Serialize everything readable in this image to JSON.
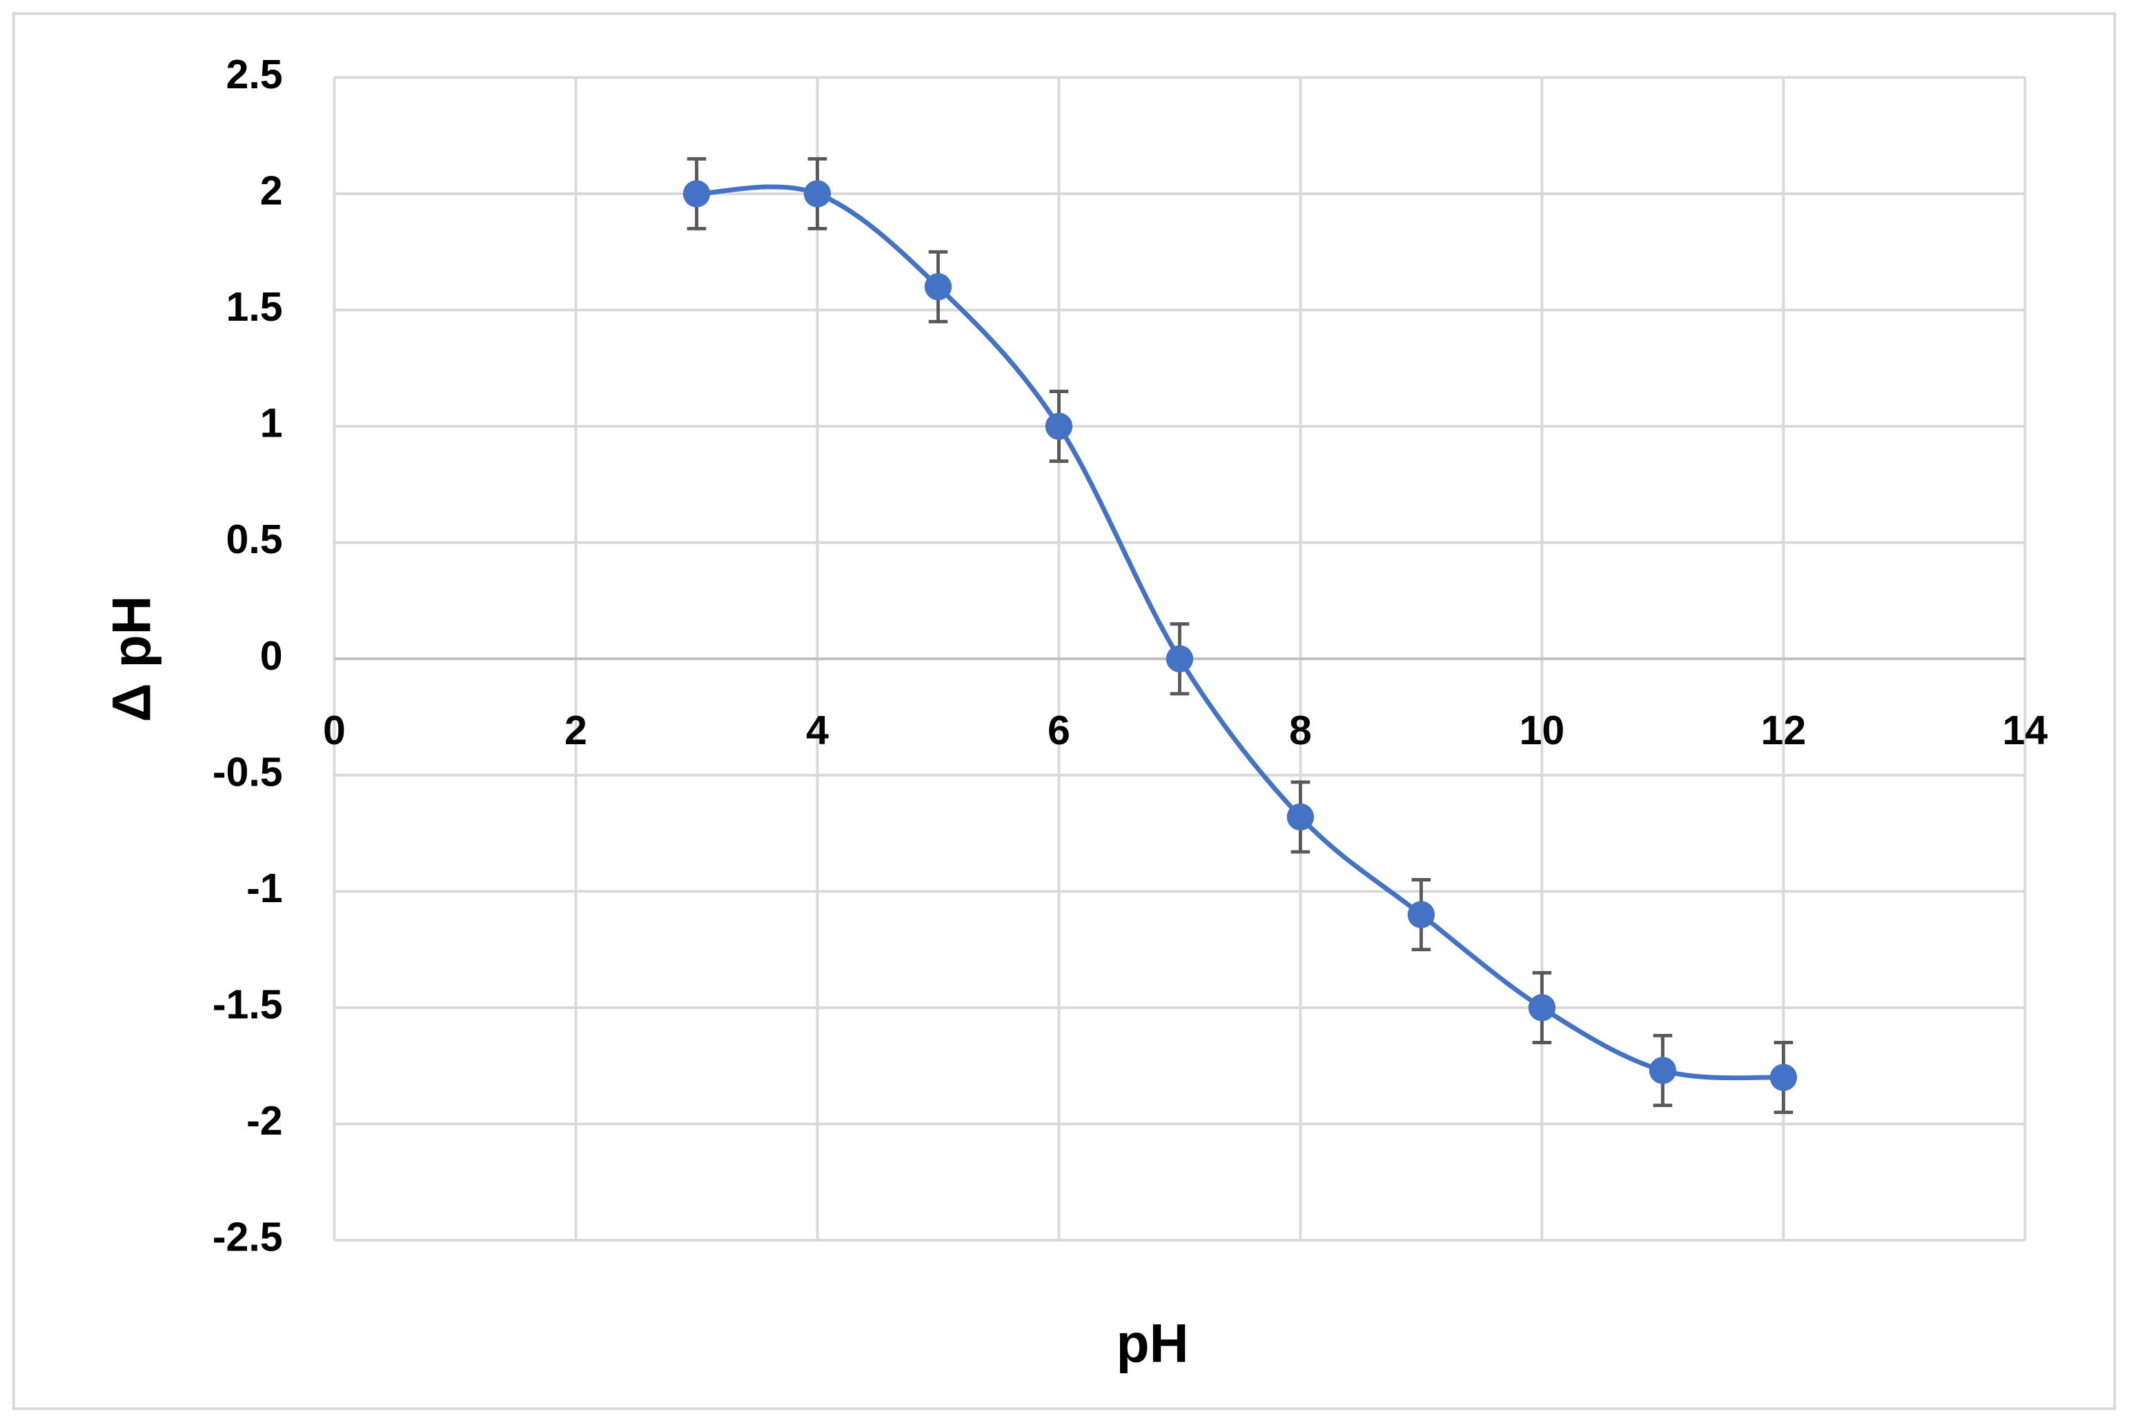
{
  "chart_data": {
    "type": "line",
    "x_label": "pH",
    "y_label": "Δ pH",
    "x": [
      3,
      4,
      5,
      6,
      7,
      8,
      9,
      10,
      11,
      12
    ],
    "series": [
      {
        "color": "#4472c4",
        "values": [
          2,
          2,
          1.6,
          1,
          0,
          -0.68,
          -1.1,
          -1.5,
          -1.77,
          -1.8
        ],
        "errors": [
          0.15,
          0.15,
          0.15,
          0.15,
          0.15,
          0.15,
          0.15,
          0.15,
          0.15,
          0.15
        ],
        "error_color": "#595959"
      }
    ],
    "smooth": true,
    "xlim": [
      0,
      14
    ],
    "xticks": [
      0,
      2,
      4,
      6,
      8,
      10,
      12,
      14
    ],
    "ylim": [
      -2.5,
      2.5
    ],
    "yticks": [
      -2.5,
      -2,
      -1.5,
      -1,
      -0.5,
      0,
      0.5,
      1,
      1.5,
      2,
      2.5
    ],
    "grid": true
  }
}
